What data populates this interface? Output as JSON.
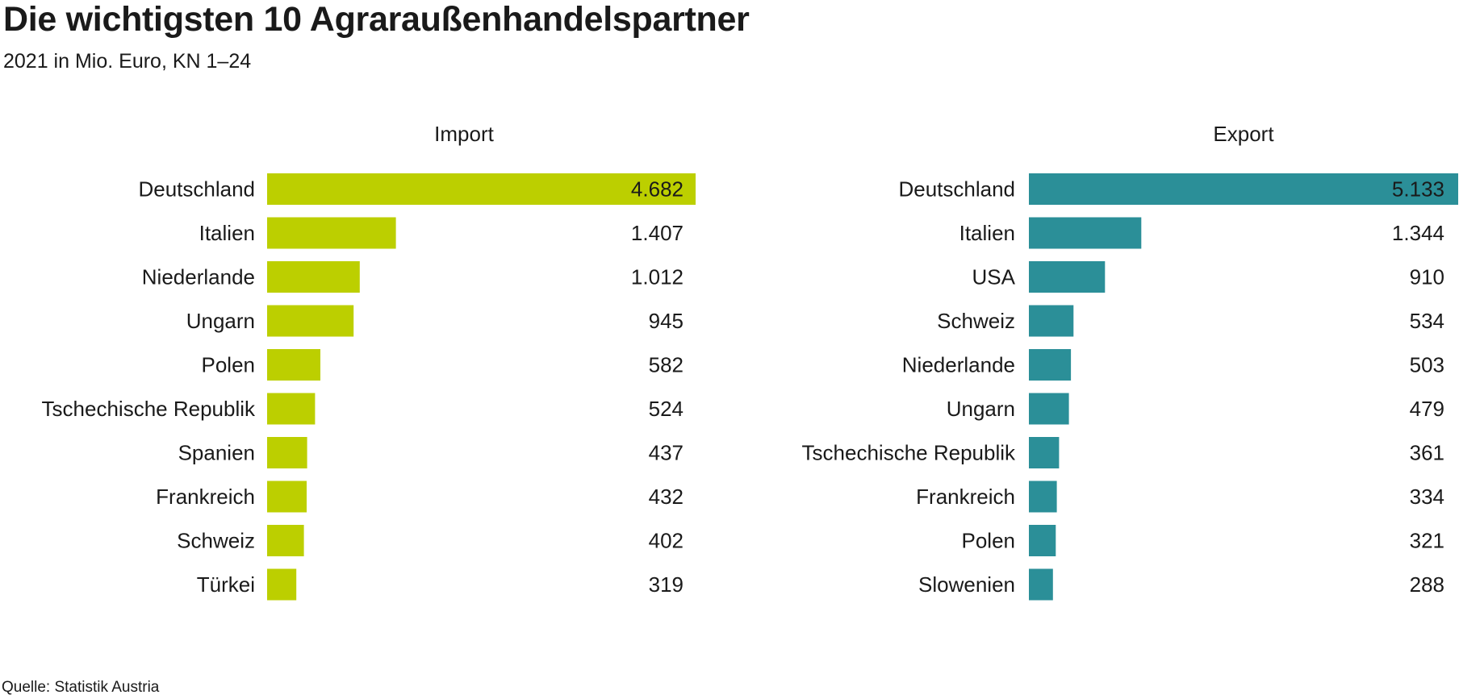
{
  "title": "Die wichtigsten 10 Agraraußenhandelspartner",
  "subtitle": "2021 in Mio. Euro, KN 1–24",
  "source": "Quelle: Statistik Austria",
  "colors": {
    "import": "#bccf00",
    "export": "#2b8f98",
    "text": "#1a1a1a"
  },
  "chart_data": [
    {
      "type": "bar",
      "orientation": "horizontal",
      "panel_title": "Import",
      "categories": [
        "Deutschland",
        "Italien",
        "Niederlande",
        "Ungarn",
        "Polen",
        "Tschechische Republik",
        "Spanien",
        "Frankreich",
        "Schweiz",
        "Türkei"
      ],
      "values": [
        4682,
        1407,
        1012,
        945,
        582,
        524,
        437,
        432,
        402,
        319
      ],
      "value_labels": [
        "4.682",
        "1.407",
        "1.012",
        "945",
        "582",
        "524",
        "437",
        "432",
        "402",
        "319"
      ],
      "xlim": [
        0,
        4682
      ],
      "grid": false,
      "color": "#bccf00"
    },
    {
      "type": "bar",
      "orientation": "horizontal",
      "panel_title": "Export",
      "categories": [
        "Deutschland",
        "Italien",
        "USA",
        "Schweiz",
        "Niederlande",
        "Ungarn",
        "Tschechische Republik",
        "Frankreich",
        "Polen",
        "Slowenien"
      ],
      "values": [
        5133,
        1344,
        910,
        534,
        503,
        479,
        361,
        334,
        321,
        288
      ],
      "value_labels": [
        "5.133",
        "1.344",
        "910",
        "534",
        "503",
        "479",
        "361",
        "334",
        "321",
        "288"
      ],
      "xlim": [
        0,
        5133
      ],
      "grid": false,
      "color": "#2b8f98"
    }
  ]
}
